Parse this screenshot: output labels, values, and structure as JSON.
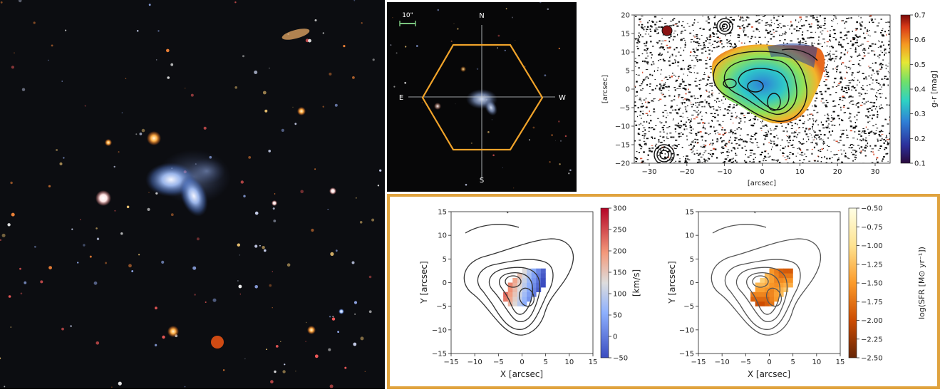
{
  "thumb": {
    "scale_label": "10\"",
    "compass": {
      "north": "N",
      "south": "S",
      "east": "E",
      "west": "W"
    },
    "colors": {
      "hexagon": "#f0a32a",
      "crosshair": "#d0d6da",
      "scalebar": "#7bc47f"
    }
  },
  "color_map": {
    "xlabel": "[arcsec]",
    "ylabel": "[arcsec]",
    "xticks": [
      "−30",
      "−20",
      "−10",
      "0",
      "10",
      "20",
      "30"
    ],
    "yticks": [
      "20",
      "15",
      "10",
      "5",
      "0",
      "−5",
      "−10",
      "−15",
      "−20"
    ],
    "cbar_label": "g-r [mag]",
    "cbar_ticks": [
      "0.7",
      "0.6",
      "0.5",
      "0.4",
      "0.3",
      "0.2",
      "0.1"
    ],
    "colormap": "jet"
  },
  "ifu": {
    "frame_color": "#e0a33e",
    "left": {
      "xlabel": "X [arcsec]",
      "ylabel": "Y [arcsec]",
      "xticks": [
        "−15",
        "−10",
        "−5",
        "0",
        "5",
        "10",
        "15"
      ],
      "yticks": [
        "15",
        "10",
        "5",
        "0",
        "−5",
        "−10",
        "−15"
      ],
      "cbar_label": "[km/s]",
      "cbar_ticks": [
        "300",
        "250",
        "200",
        "150",
        "100",
        "50",
        "0",
        "−50"
      ],
      "colormap": "coolwarm"
    },
    "right": {
      "xlabel": "X [arcsec]",
      "ylabel": "Y [arcsec]",
      "xticks": [
        "−15",
        "−10",
        "−5",
        "0",
        "5",
        "10",
        "15"
      ],
      "yticks": [
        "15",
        "10",
        "5",
        "0",
        "−5",
        "−10",
        "−15"
      ],
      "cbar_label": "log(SFR [M⊙ yr⁻¹])",
      "cbar_ticks": [
        "−0.50",
        "−0.75",
        "−1.00",
        "−1.25",
        "−1.50",
        "−1.75",
        "−2.00",
        "−2.25",
        "−2.50"
      ],
      "colormap": "YlOrBr"
    }
  }
}
